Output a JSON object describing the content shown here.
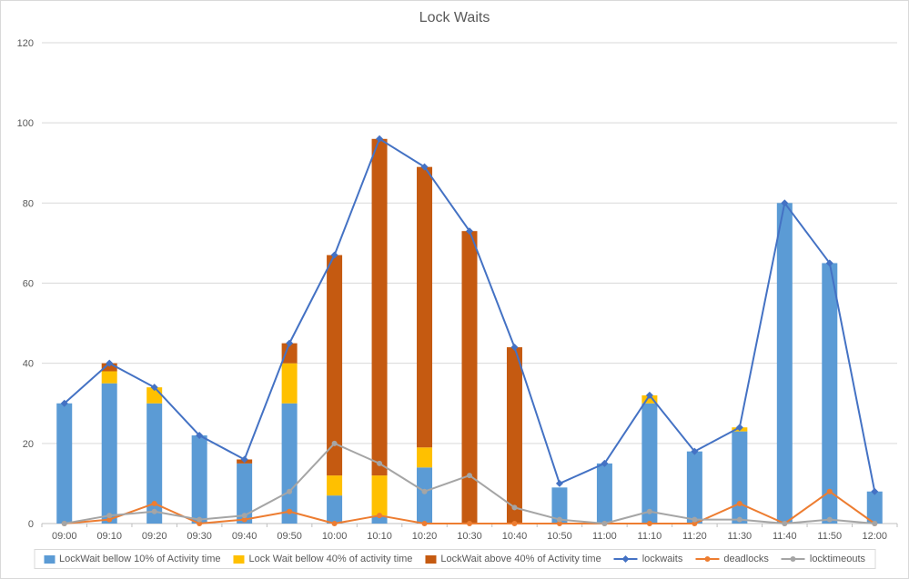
{
  "chart_data": {
    "type": "bar",
    "subtype": "stacked-bars-with-lines",
    "title": "Lock Waits",
    "categories": [
      "09:00",
      "09:10",
      "09:20",
      "09:30",
      "09:40",
      "09:50",
      "10:00",
      "10:10",
      "10:20",
      "10:30",
      "10:40",
      "10:50",
      "11:00",
      "11:10",
      "11:20",
      "11:30",
      "11:40",
      "11:50",
      "12:00"
    ],
    "ylim": [
      0,
      120
    ],
    "yticks": [
      0,
      20,
      40,
      60,
      80,
      100,
      120
    ],
    "grid": true,
    "legend_position": "bottom",
    "bar_series": [
      {
        "name": "LockWait bellow 10% of Activity time",
        "color": "#5B9BD5",
        "values": [
          30,
          35,
          30,
          22,
          15,
          30,
          7,
          2,
          14,
          0,
          0,
          9,
          15,
          30,
          18,
          23,
          80,
          65,
          8
        ]
      },
      {
        "name": "Lock Wait bellow 40% of activity time",
        "color": "#FFC000",
        "values": [
          0,
          3,
          4,
          0,
          0,
          10,
          5,
          10,
          5,
          0,
          0,
          0,
          0,
          2,
          0,
          1,
          0,
          0,
          0
        ]
      },
      {
        "name": "LockWait above 40% of Activity time",
        "color": "#C55A11",
        "values": [
          0,
          2,
          0,
          0,
          1,
          5,
          55,
          84,
          70,
          73,
          44,
          0,
          0,
          0,
          0,
          0,
          0,
          0,
          0
        ]
      }
    ],
    "line_series": [
      {
        "name": "lockwaits",
        "color": "#4472C4",
        "marker": "diamond",
        "values": [
          30,
          40,
          34,
          22,
          16,
          45,
          67,
          96,
          89,
          73,
          44,
          10,
          15,
          32,
          18,
          24,
          80,
          65,
          8
        ]
      },
      {
        "name": "deadlocks",
        "color": "#ED7D31",
        "marker": "circle",
        "values": [
          0,
          1,
          5,
          0,
          1,
          3,
          0,
          2,
          0,
          0,
          0,
          0,
          0,
          0,
          0,
          5,
          0,
          8,
          0
        ]
      },
      {
        "name": "locktimeouts",
        "color": "#A5A5A5",
        "marker": "circle",
        "values": [
          0,
          2,
          3,
          1,
          2,
          8,
          20,
          15,
          8,
          12,
          4,
          1,
          0,
          3,
          1,
          1,
          0,
          1,
          0
        ]
      }
    ],
    "axis": {
      "grid_color": "#D9D9D9",
      "axis_color": "#BFBFBF",
      "label_color": "#595959"
    }
  }
}
